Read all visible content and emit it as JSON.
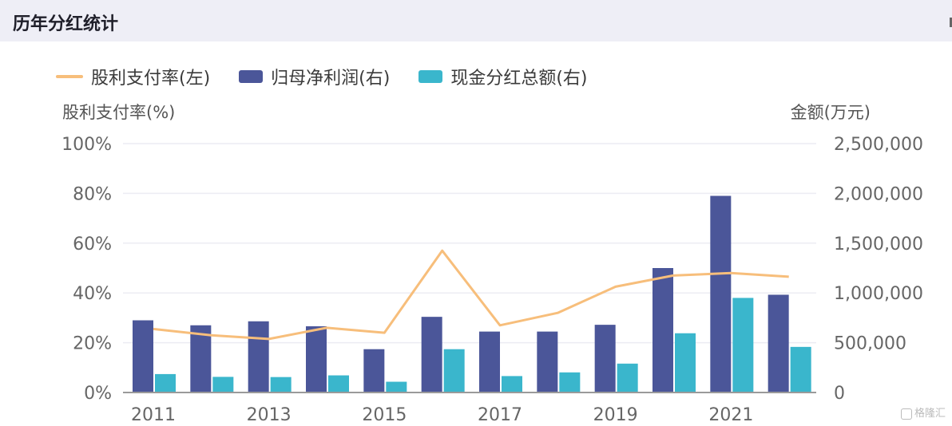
{
  "header": {
    "title": "历年分红统计"
  },
  "watermark": {
    "text": "格隆汇"
  },
  "colors": {
    "payout_line": "#f7be7b",
    "net_profit": "#4b5699",
    "dividend": "#3ab6cc",
    "grid": "#ececf3",
    "axis": "#9a9a9a"
  },
  "chart_data": {
    "type": "bar",
    "legend": [
      {
        "name": "股利支付率(左)",
        "kind": "line",
        "color": "#f7be7b"
      },
      {
        "name": "归母净利润(右)",
        "kind": "bar",
        "color": "#4b5699"
      },
      {
        "name": "现金分红总额(右)",
        "kind": "bar",
        "color": "#3ab6cc"
      }
    ],
    "left_axis": {
      "title": "股利支付率(%)",
      "ylim": [
        0,
        100
      ],
      "ticks": [
        "0%",
        "20%",
        "40%",
        "60%",
        "80%",
        "100%"
      ]
    },
    "right_axis": {
      "title": "金额(万元)",
      "ylim": [
        0,
        2500000
      ],
      "ticks": [
        "0",
        "500,000",
        "1,000,000",
        "1,500,000",
        "2,000,000",
        "2,500,000"
      ]
    },
    "x": [
      2011,
      2012,
      2013,
      2014,
      2015,
      2016,
      2017,
      2018,
      2019,
      2020,
      2021,
      2022
    ],
    "x_tick_labels": [
      "2011",
      "",
      "2013",
      "",
      "2015",
      "",
      "2017",
      "",
      "2019",
      "",
      "2021",
      ""
    ],
    "series": [
      {
        "name": "归母净利润(右)",
        "type": "bar",
        "axis": "right",
        "values": [
          725000,
          675000,
          715000,
          665000,
          435000,
          760000,
          612000,
          612000,
          680000,
          1250000,
          1975000,
          982000
        ]
      },
      {
        "name": "现金分红总额(右)",
        "type": "bar",
        "axis": "right",
        "values": [
          185000,
          157000,
          155000,
          172000,
          108000,
          435000,
          165000,
          202000,
          290000,
          595000,
          950000,
          458000
        ]
      },
      {
        "name": "股利支付率(左)",
        "type": "line",
        "axis": "left",
        "values": [
          25.5,
          23,
          21.5,
          26,
          24,
          57,
          27,
          32,
          42.5,
          47,
          48,
          46.5
        ]
      }
    ],
    "grid": true,
    "legend_position": "top-left"
  }
}
